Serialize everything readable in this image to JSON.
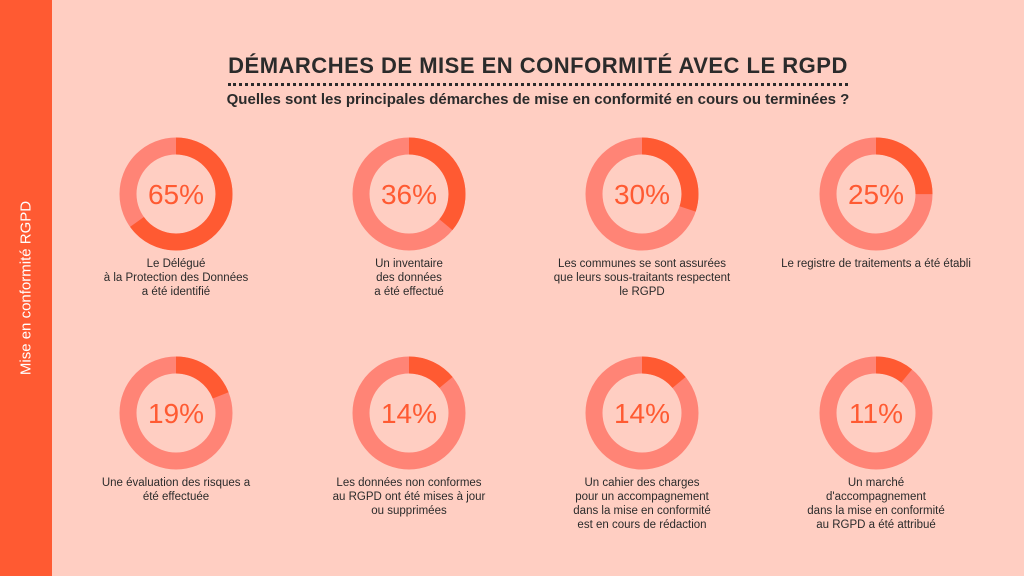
{
  "sidebar": {
    "label": "Mise en conformité RGPD"
  },
  "header": {
    "title": "DÉMARCHES DE MISE EN CONFORMITÉ AVEC LE RGPD",
    "subtitle": "Quelles sont les principales démarches de mise en conformité en cours ou terminées ?"
  },
  "colors": {
    "background": "#FFCEC2",
    "accent": "#FF5A32",
    "ring_track": "#FF8476",
    "percent_text": "#FF5A32"
  },
  "chart_data": [
    {
      "type": "pie",
      "value": 65,
      "label": "65%",
      "caption": "Le Délégué\nà la Protection des Données\na été identifié"
    },
    {
      "type": "pie",
      "value": 36,
      "label": "36%",
      "caption": "Un inventaire\ndes données\na été effectué"
    },
    {
      "type": "pie",
      "value": 30,
      "label": "30%",
      "caption": "Les communes se sont assurées\nque leurs sous-traitants respectent\nle RGPD"
    },
    {
      "type": "pie",
      "value": 25,
      "label": "25%",
      "caption": "Le registre de traitements a été établi"
    },
    {
      "type": "pie",
      "value": 19,
      "label": "19%",
      "caption": "Une évaluation des risques a\nété effectuée"
    },
    {
      "type": "pie",
      "value": 14,
      "label": "14%",
      "caption": "Les données non conformes\nau RGPD ont été mises à jour\nou supprimées"
    },
    {
      "type": "pie",
      "value": 14,
      "label": "14%",
      "caption": "Un cahier des charges\npour un accompagnement\ndans la mise en conformité\nest en cours de rédaction"
    },
    {
      "type": "pie",
      "value": 11,
      "label": "11%",
      "caption": "Un marché\nd'accompagnement\ndans la mise en conformité\nau RGPD a été attribué"
    }
  ]
}
